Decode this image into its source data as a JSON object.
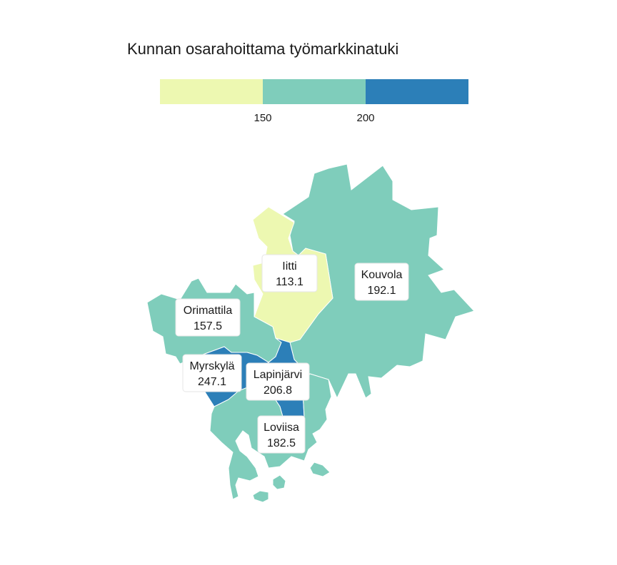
{
  "title": "Kunnan osarahoittama työmarkkinatuki",
  "legend": {
    "bins": [
      {
        "color": "#edf8b1"
      },
      {
        "color": "#7fcdbb"
      },
      {
        "color": "#2c7fb8"
      }
    ],
    "ticks": [
      "150",
      "200"
    ]
  },
  "regions": [
    {
      "name": "Iitti",
      "value": "113.1",
      "color": "#edf8b1"
    },
    {
      "name": "Kouvola",
      "value": "192.1",
      "color": "#7fcdbb"
    },
    {
      "name": "Orimattila",
      "value": "157.5",
      "color": "#7fcdbb"
    },
    {
      "name": "Myrskylä",
      "value": "247.1",
      "color": "#2c7fb8"
    },
    {
      "name": "Lapinjärvi",
      "value": "206.8",
      "color": "#2c7fb8"
    },
    {
      "name": "Loviisa",
      "value": "182.5",
      "color": "#7fcdbb"
    }
  ]
}
